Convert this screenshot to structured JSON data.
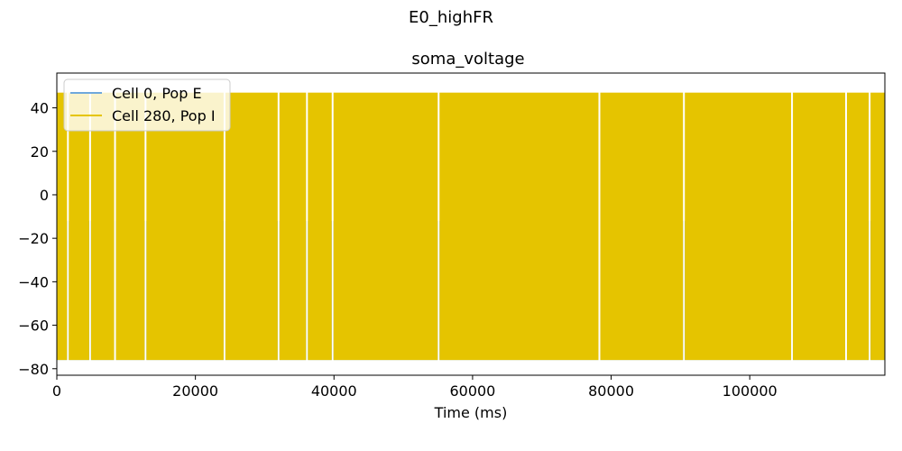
{
  "figure": {
    "suptitle": "E0_highFR"
  },
  "chart_data": {
    "type": "line",
    "title": "soma_voltage",
    "xlabel": "Time (ms)",
    "ylabel": "",
    "xlim": [
      0,
      119500
    ],
    "ylim": [
      -83,
      56
    ],
    "xticks": [
      0,
      20000,
      40000,
      60000,
      80000,
      100000
    ],
    "xtick_labels": [
      "0",
      "20000",
      "40000",
      "60000",
      "80000",
      "100000"
    ],
    "yticks": [
      40,
      20,
      0,
      -20,
      -40,
      -60,
      -80
    ],
    "ytick_labels": [
      "40",
      "20",
      "0",
      "−20",
      "−40",
      "−60",
      "−80"
    ],
    "grid": false,
    "legend_position": "top-left",
    "series": [
      {
        "name": "Cell 0, Pop E",
        "color": "#6fa8dc",
        "min": -76,
        "max": -12,
        "gap_times_ms": [
          1600,
          4800,
          8400,
          12800,
          24200,
          32000,
          36100,
          39800,
          55100,
          78300,
          90500,
          106100,
          113900,
          117300
        ]
      },
      {
        "name": "Cell 280, Pop I",
        "color": "#e5c400",
        "min": -76,
        "max": 47,
        "gap_times_ms": [
          1600,
          4800,
          8400,
          12800,
          24200,
          32000,
          36100,
          39800,
          55100,
          78300,
          90500,
          106100,
          113900,
          117300
        ]
      }
    ]
  }
}
